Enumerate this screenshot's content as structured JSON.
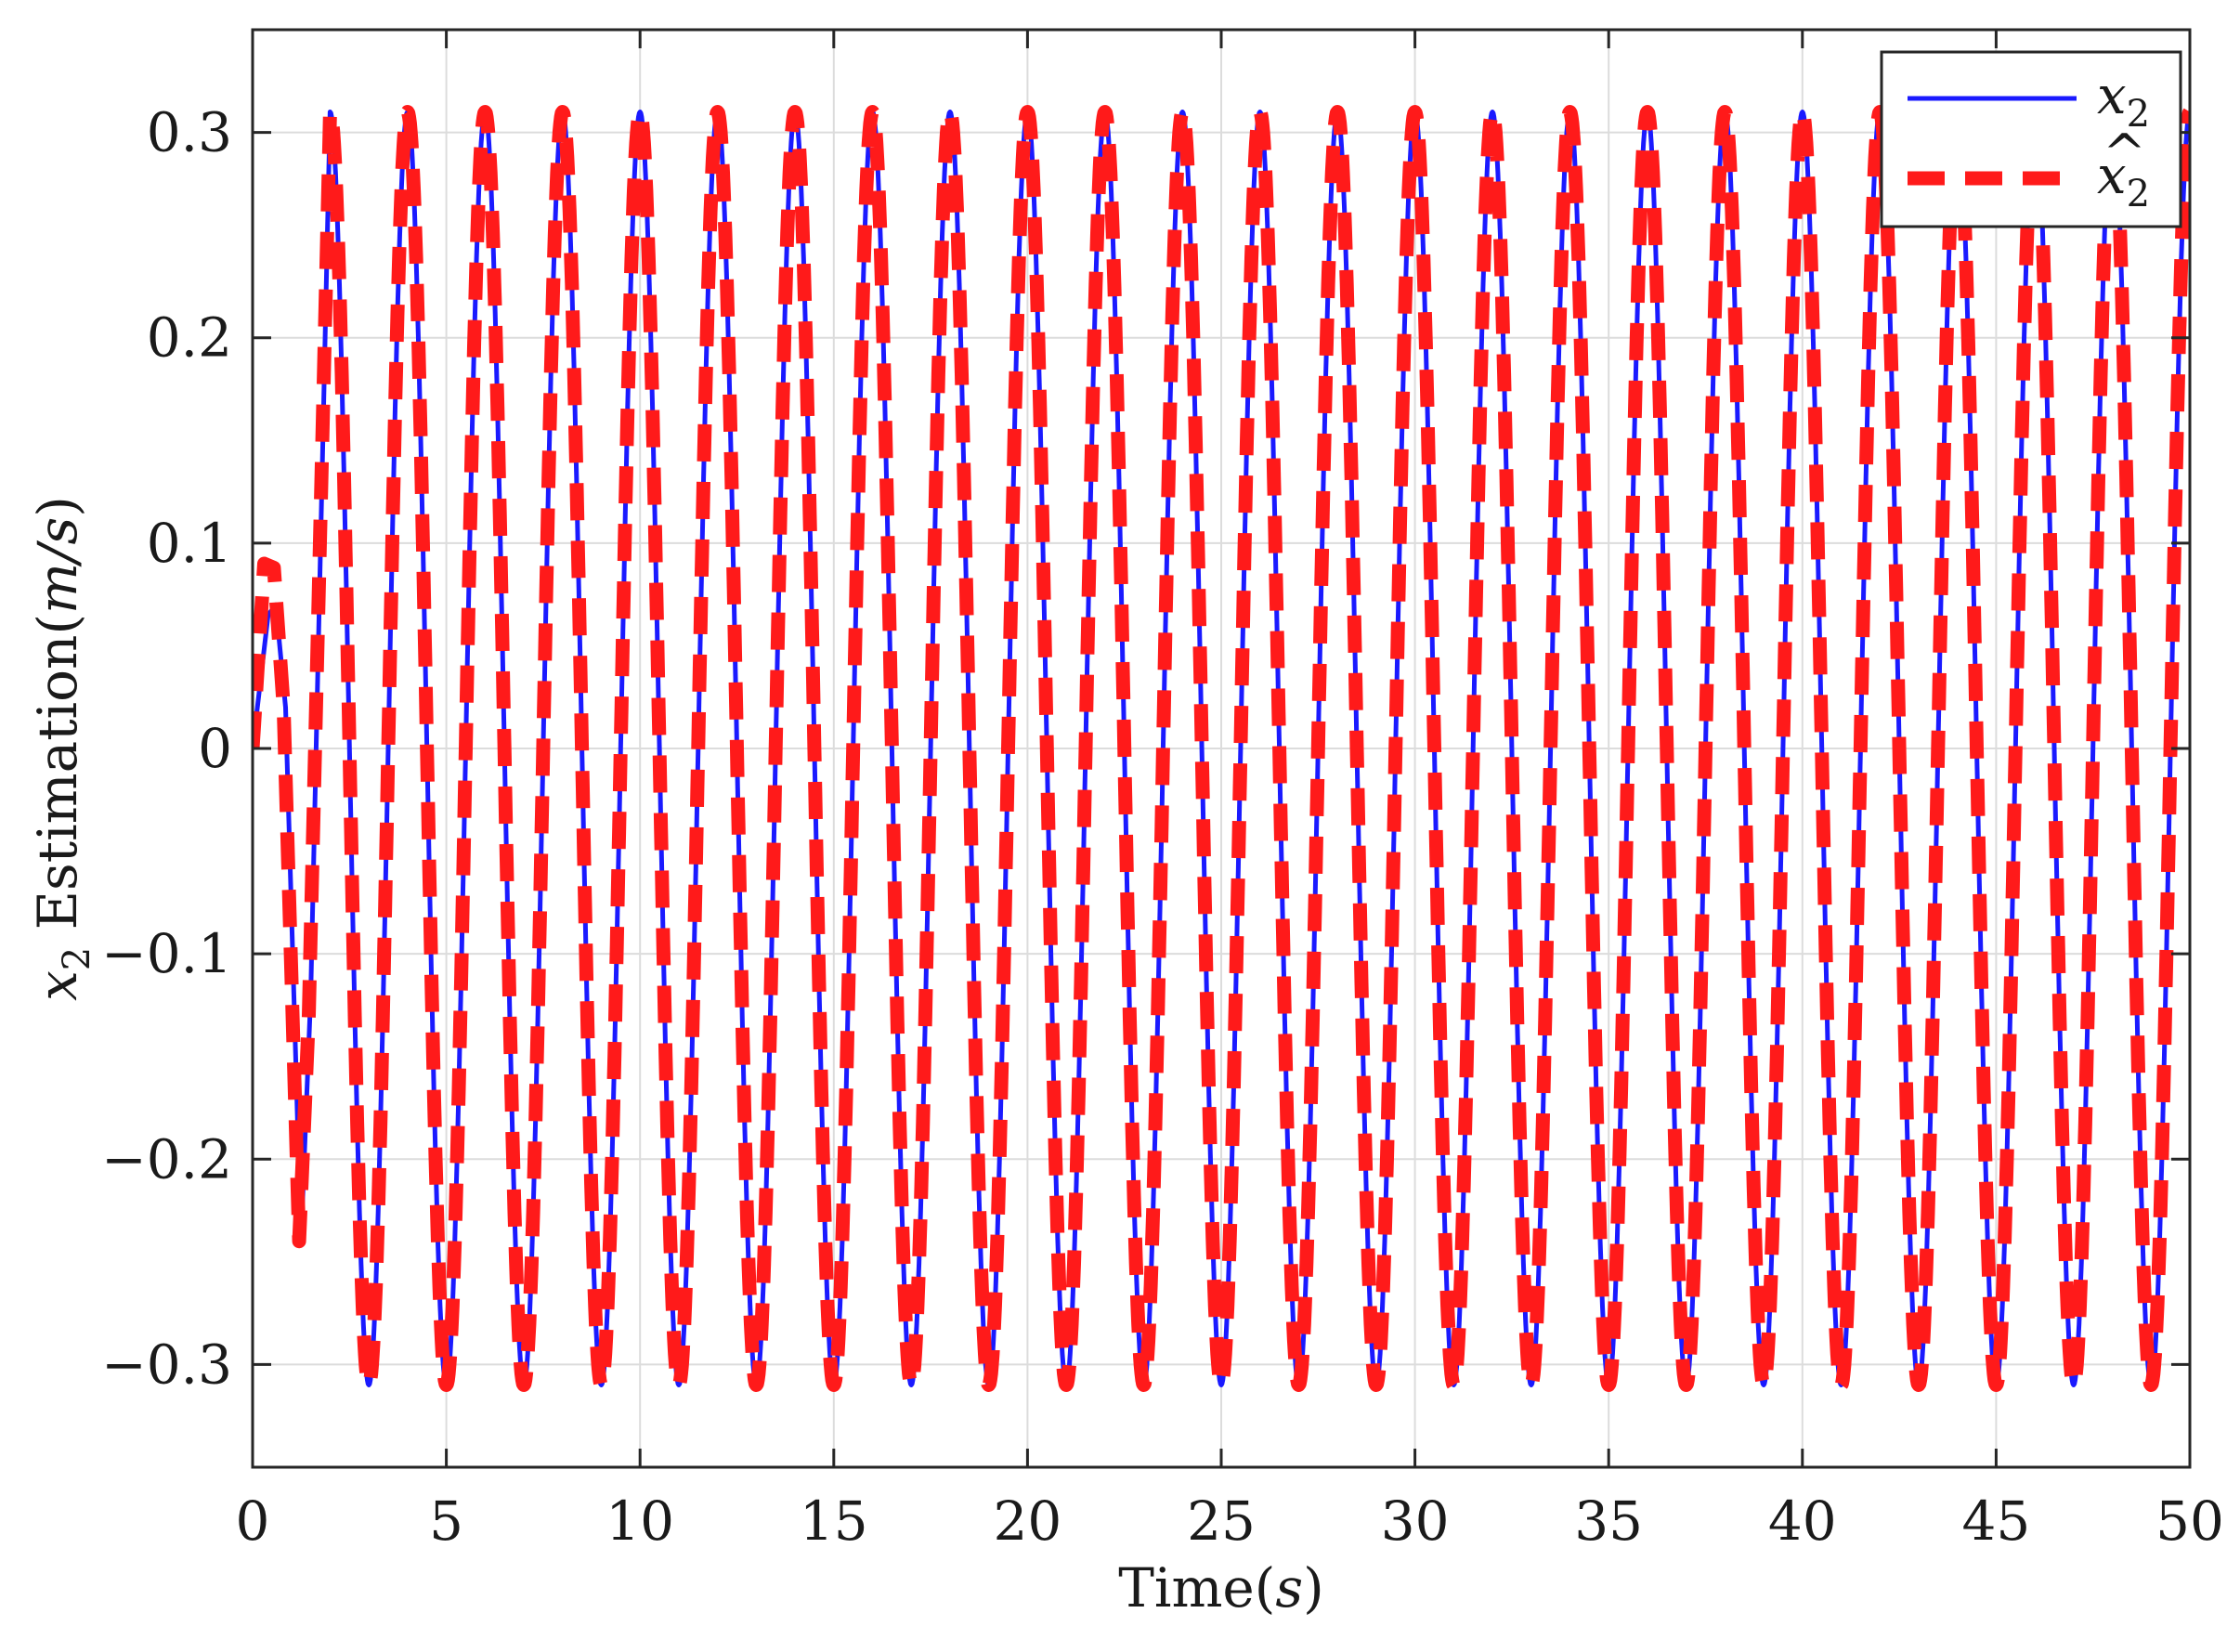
{
  "chart_data": {
    "type": "line",
    "xlabel": "Time(s)",
    "xlabel_parts": {
      "text": "Time(",
      "var": "s",
      "close": ")"
    },
    "ylabel": "x2 Estimation(m/s)",
    "ylabel_parts": {
      "var": "x",
      "sub": "2",
      "text": " Estimation(",
      "unit": "m/s",
      "close": ")"
    },
    "xlim": [
      0,
      50
    ],
    "ylim": [
      -0.35,
      0.35
    ],
    "xticks": [
      0,
      5,
      10,
      15,
      20,
      25,
      30,
      35,
      40,
      45,
      50
    ],
    "xtick_labels": [
      "0",
      "5",
      "10",
      "15",
      "20",
      "25",
      "30",
      "35",
      "40",
      "45",
      "50"
    ],
    "yticks": [
      -0.3,
      -0.2,
      -0.1,
      0,
      0.1,
      0.2,
      0.3
    ],
    "ytick_labels": [
      "−0.3",
      "−0.2",
      "−0.1",
      "0",
      "0.1",
      "0.2",
      "0.3"
    ],
    "grid": true,
    "legend_position": "top-right",
    "signal": {
      "amplitude": 0.31,
      "period": 2.0,
      "x_start": 0,
      "x_end": 50
    },
    "series": [
      {
        "name": "x2",
        "name_parts": {
          "var": "x",
          "sub": "2"
        },
        "color": "#1a1aff",
        "style": "solid",
        "start": [
          [
            0,
            0
          ],
          [
            0.4,
            0.065
          ],
          [
            0.6,
            0.07
          ],
          [
            0.85,
            0.02
          ],
          [
            1.25,
            -0.24
          ],
          [
            1.5,
            -0.12
          ],
          [
            2.0,
            0.31
          ]
        ]
      },
      {
        "name": "x̂2",
        "name_parts": {
          "var": "x",
          "hat": true,
          "sub": "2"
        },
        "color": "#ff1a1a",
        "style": "dashed",
        "start": [
          [
            0,
            0
          ],
          [
            0.3,
            0.09
          ],
          [
            0.55,
            0.088
          ],
          [
            0.8,
            0.02
          ],
          [
            1.2,
            -0.24
          ],
          [
            1.45,
            -0.13
          ],
          [
            2.0,
            0.31
          ]
        ]
      }
    ]
  }
}
